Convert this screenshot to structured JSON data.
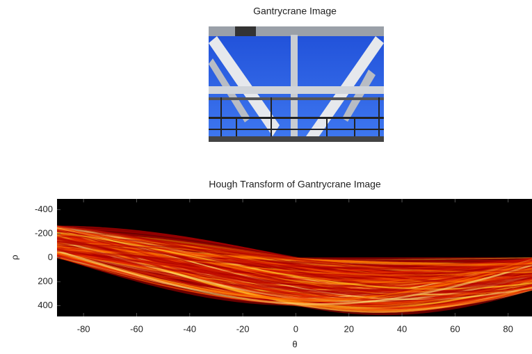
{
  "chart_data": [
    {
      "type": "image",
      "title": "Gantrycrane Image"
    },
    {
      "type": "heatmap",
      "title": "Hough Transform of Gantrycrane Image",
      "xlabel": "θ",
      "ylabel": "ρ",
      "xlim": [
        -90,
        89
      ],
      "ylim": [
        -490,
        490
      ],
      "y_reversed": true,
      "xticks": [
        -80,
        -60,
        -40,
        -20,
        0,
        20,
        40,
        60,
        80
      ],
      "yticks": [
        -400,
        -200,
        0,
        200,
        400
      ],
      "colormap": "hot"
    }
  ]
}
